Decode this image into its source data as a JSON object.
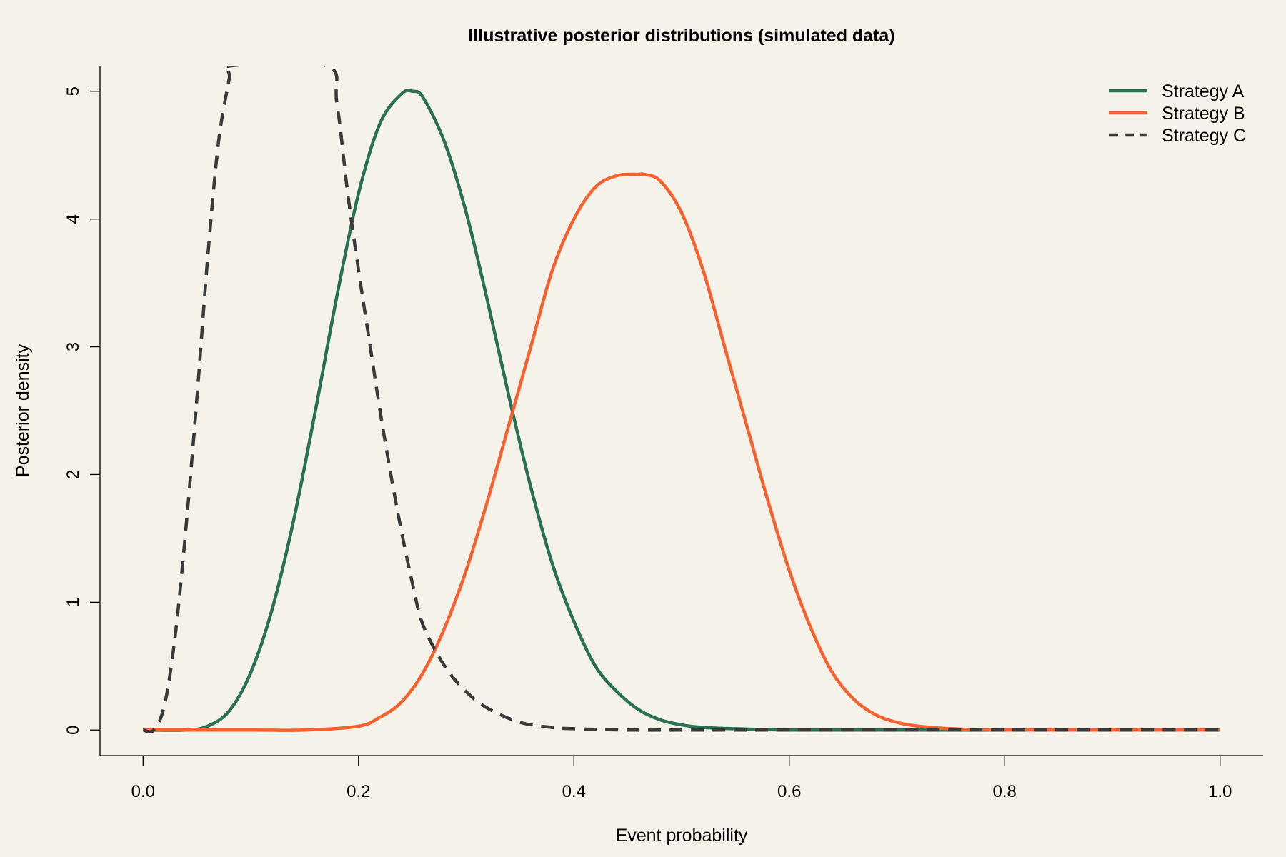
{
  "chart_data": {
    "type": "line",
    "title": "Illustrative posterior distributions (simulated data)",
    "xlabel": "Event probability",
    "ylabel": "Posterior density",
    "xlim": [
      -0.04,
      1.04
    ],
    "ylim": [
      -0.2,
      5.2
    ],
    "xticks": [
      "0.0",
      "0.2",
      "0.4",
      "0.6",
      "0.8",
      "1.0"
    ],
    "yticks": [
      "0",
      "1",
      "2",
      "3",
      "4",
      "5"
    ],
    "grid": false,
    "legend_position": "top-right",
    "series": [
      {
        "name": "Strategy A",
        "color": "#2a7054",
        "dash": "solid",
        "x": [
          0.0,
          0.04,
          0.06,
          0.08,
          0.1,
          0.12,
          0.14,
          0.16,
          0.18,
          0.2,
          0.22,
          0.24,
          0.25,
          0.26,
          0.28,
          0.3,
          0.32,
          0.34,
          0.36,
          0.38,
          0.4,
          0.42,
          0.44,
          0.46,
          0.48,
          0.5,
          0.52,
          0.55,
          0.6,
          0.7,
          0.8,
          0.9,
          1.0
        ],
        "values": [
          0.0,
          0.0,
          0.03,
          0.15,
          0.45,
          0.95,
          1.65,
          2.5,
          3.4,
          4.2,
          4.75,
          4.98,
          5.0,
          4.95,
          4.6,
          4.05,
          3.35,
          2.6,
          1.9,
          1.3,
          0.85,
          0.5,
          0.3,
          0.16,
          0.08,
          0.04,
          0.02,
          0.01,
          0.0,
          0.0,
          0.0,
          0.0,
          0.0
        ]
      },
      {
        "name": "Strategy B",
        "color": "#f5612f",
        "dash": "solid",
        "x": [
          0.0,
          0.1,
          0.15,
          0.2,
          0.22,
          0.24,
          0.26,
          0.28,
          0.3,
          0.32,
          0.34,
          0.36,
          0.38,
          0.4,
          0.42,
          0.44,
          0.46,
          0.465,
          0.48,
          0.5,
          0.52,
          0.54,
          0.56,
          0.58,
          0.6,
          0.62,
          0.64,
          0.66,
          0.68,
          0.7,
          0.72,
          0.75,
          0.8,
          0.9,
          1.0
        ],
        "values": [
          0.0,
          0.0,
          0.0,
          0.03,
          0.1,
          0.22,
          0.45,
          0.8,
          1.25,
          1.8,
          2.4,
          3.0,
          3.6,
          4.0,
          4.25,
          4.34,
          4.35,
          4.35,
          4.3,
          4.05,
          3.6,
          3.0,
          2.4,
          1.8,
          1.25,
          0.8,
          0.45,
          0.24,
          0.12,
          0.06,
          0.03,
          0.01,
          0.0,
          0.0,
          0.0
        ]
      },
      {
        "name": "Strategy C",
        "color": "#3a3a3a",
        "dash": "dashed",
        "x": [
          0.0,
          0.01,
          0.02,
          0.03,
          0.04,
          0.05,
          0.06,
          0.07,
          0.08,
          0.082,
          0.17,
          0.18,
          0.19,
          0.2,
          0.21,
          0.22,
          0.23,
          0.24,
          0.25,
          0.26,
          0.28,
          0.3,
          0.32,
          0.35,
          0.38,
          0.4,
          0.45,
          0.5,
          0.6,
          0.8,
          1.0
        ],
        "values": [
          0.0,
          0.0,
          0.2,
          0.75,
          1.6,
          2.6,
          3.7,
          4.6,
          5.1,
          5.2,
          5.2,
          4.9,
          4.2,
          3.6,
          3.05,
          2.5,
          2.0,
          1.55,
          1.15,
          0.82,
          0.5,
          0.3,
          0.17,
          0.06,
          0.02,
          0.01,
          0.0,
          0.0,
          0.0,
          0.0,
          0.0
        ]
      }
    ]
  }
}
